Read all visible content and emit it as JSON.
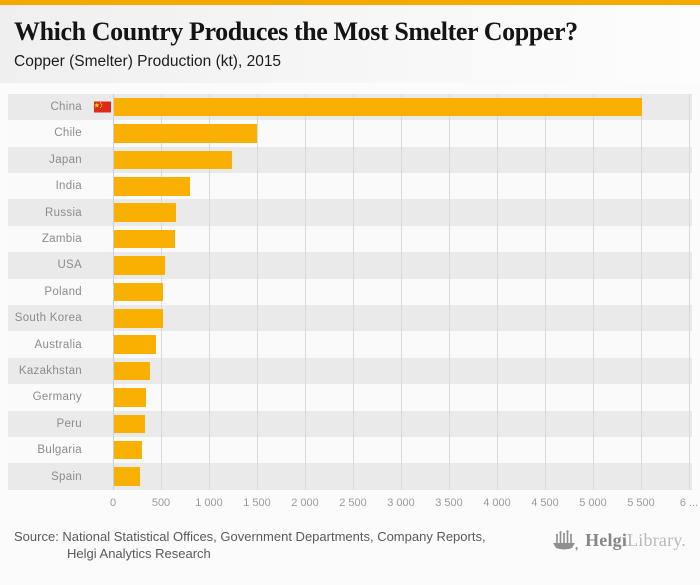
{
  "header": {
    "title": "Which Country Produces the Most Smelter Copper?",
    "subtitle": "Copper (Smelter) Production (kt), 2015"
  },
  "chart_data": {
    "type": "bar",
    "orientation": "horizontal",
    "title": "Which Country Produces the Most Smelter Copper?",
    "subtitle": "Copper (Smelter) Production (kt), 2015",
    "unit": "kt",
    "year": "2015",
    "categories": [
      "China",
      "Chile",
      "Japan",
      "India",
      "Russia",
      "Zambia",
      "USA",
      "Poland",
      "South Korea",
      "Australia",
      "Kazakhstan",
      "Germany",
      "Peru",
      "Bulgaria",
      "Spain"
    ],
    "values": [
      5500,
      1490,
      1230,
      790,
      650,
      640,
      530,
      510,
      505,
      435,
      375,
      330,
      320,
      295,
      275
    ],
    "xlim": [
      0,
      6000
    ],
    "x_ticks": [
      0,
      500,
      1000,
      1500,
      2000,
      2500,
      3000,
      3500,
      4000,
      4500,
      5000,
      5500,
      6000
    ],
    "x_tick_labels": [
      "0",
      "500",
      "1 000",
      "1 500",
      "2 000",
      "2 500",
      "3 000",
      "3 500",
      "4 000",
      "4 500",
      "5 000",
      "5 500",
      "6 ..."
    ],
    "grid": true,
    "legend": false,
    "bar_color": "#f9b000",
    "flag_country": "China",
    "flag_icon": "china-flag-icon",
    "row_band_colors": [
      "#eaeaea",
      "#fafafa"
    ]
  },
  "footer": {
    "source_line1": "Source: National Statistical Offices, Government Departments, Company Reports,",
    "source_line2": "Helgi Analytics Research",
    "logo": {
      "brand_bold": "Helgi",
      "brand_light": "Library.",
      "icon": "helgi-library-logo-icon"
    }
  },
  "colors": {
    "accent_top_strip": "#f5a800",
    "bar": "#f9b000",
    "row_gray": "#eaeaea",
    "row_white": "#fafafa",
    "gridline": "#d9d9d9",
    "zero_line": "#c9cfe3",
    "label_text": "#8c8c8c",
    "tick_text": "#9b9b9b",
    "title_text": "#141414",
    "source_text": "#595959",
    "flag_red": "#dd2a1b",
    "flag_yellow": "#ffde00"
  }
}
